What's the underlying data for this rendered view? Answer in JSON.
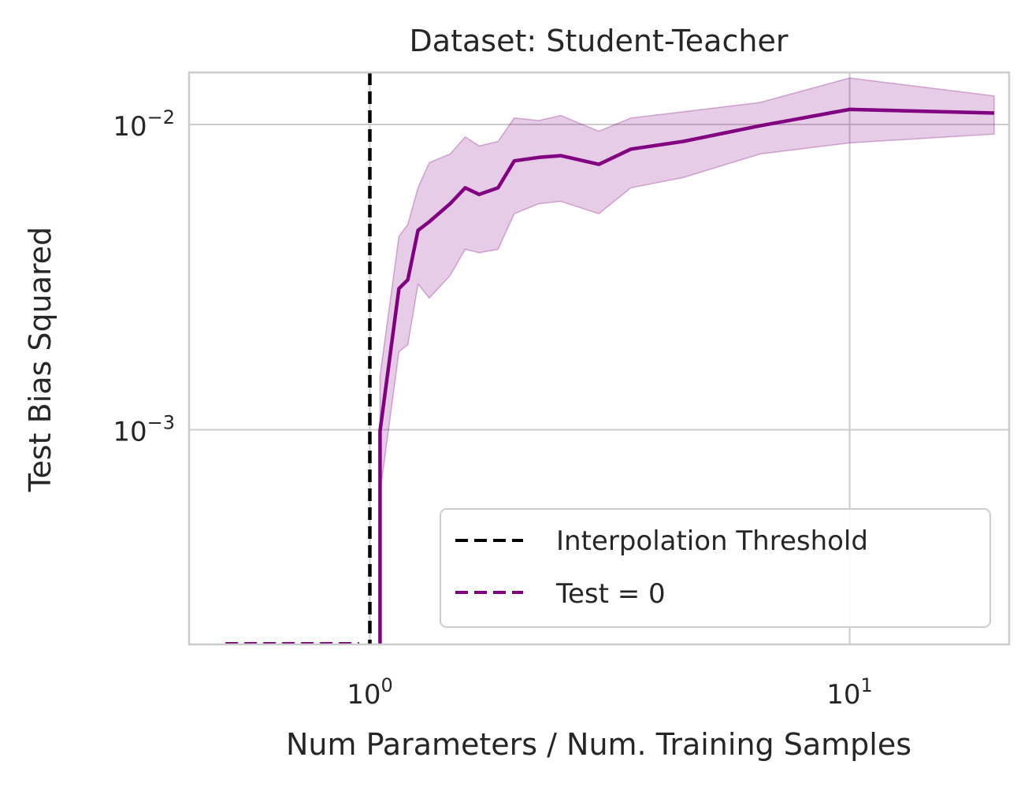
{
  "chart_data": {
    "type": "line",
    "title": "Dataset: Student-Teacher",
    "xlabel": "Num Parameters / Num. Training Samples",
    "ylabel": "Test Bias Squared",
    "xscale": "log",
    "yscale": "log",
    "xlim": [
      0.42,
      21.5
    ],
    "ylim": [
      0.000198,
      0.0148
    ],
    "grid": true,
    "legend_position": "bottom-right",
    "x_ticks": [
      {
        "base": "10",
        "exp": "0"
      },
      {
        "base": "10",
        "exp": "1"
      }
    ],
    "y_ticks": [
      {
        "base": "10",
        "exp": "−3"
      },
      {
        "base": "10",
        "exp": "−2"
      }
    ],
    "threshold": {
      "name": "Interpolation Threshold",
      "x": 1.0,
      "color": "#000000"
    },
    "zero_series": {
      "name": "Test = 0",
      "color": "#800080",
      "x": [
        0.5,
        0.95
      ]
    },
    "series": [
      {
        "color": "#800080",
        "x": [
          1.05,
          1.15,
          1.2,
          1.26,
          1.33,
          1.47,
          1.58,
          1.69,
          1.85,
          2.0,
          2.25,
          2.5,
          3.0,
          3.5,
          4.5,
          6.5,
          10.0,
          20.0
        ],
        "y": [
          0.00099,
          0.0029,
          0.0031,
          0.0045,
          0.0048,
          0.0055,
          0.0062,
          0.0059,
          0.0062,
          0.0076,
          0.0078,
          0.0079,
          0.0074,
          0.0083,
          0.0088,
          0.0099,
          0.0112,
          0.0109
        ],
        "y_low": [
          0.00062,
          0.0018,
          0.0019,
          0.003,
          0.0027,
          0.0032,
          0.0039,
          0.0038,
          0.0039,
          0.0051,
          0.0055,
          0.0056,
          0.0051,
          0.0062,
          0.0067,
          0.008,
          0.0087,
          0.0093
        ],
        "y_high": [
          0.0015,
          0.0043,
          0.0047,
          0.0062,
          0.0075,
          0.008,
          0.0091,
          0.0085,
          0.0088,
          0.0105,
          0.0103,
          0.0107,
          0.0095,
          0.0105,
          0.011,
          0.0118,
          0.0142,
          0.0124
        ]
      }
    ]
  }
}
